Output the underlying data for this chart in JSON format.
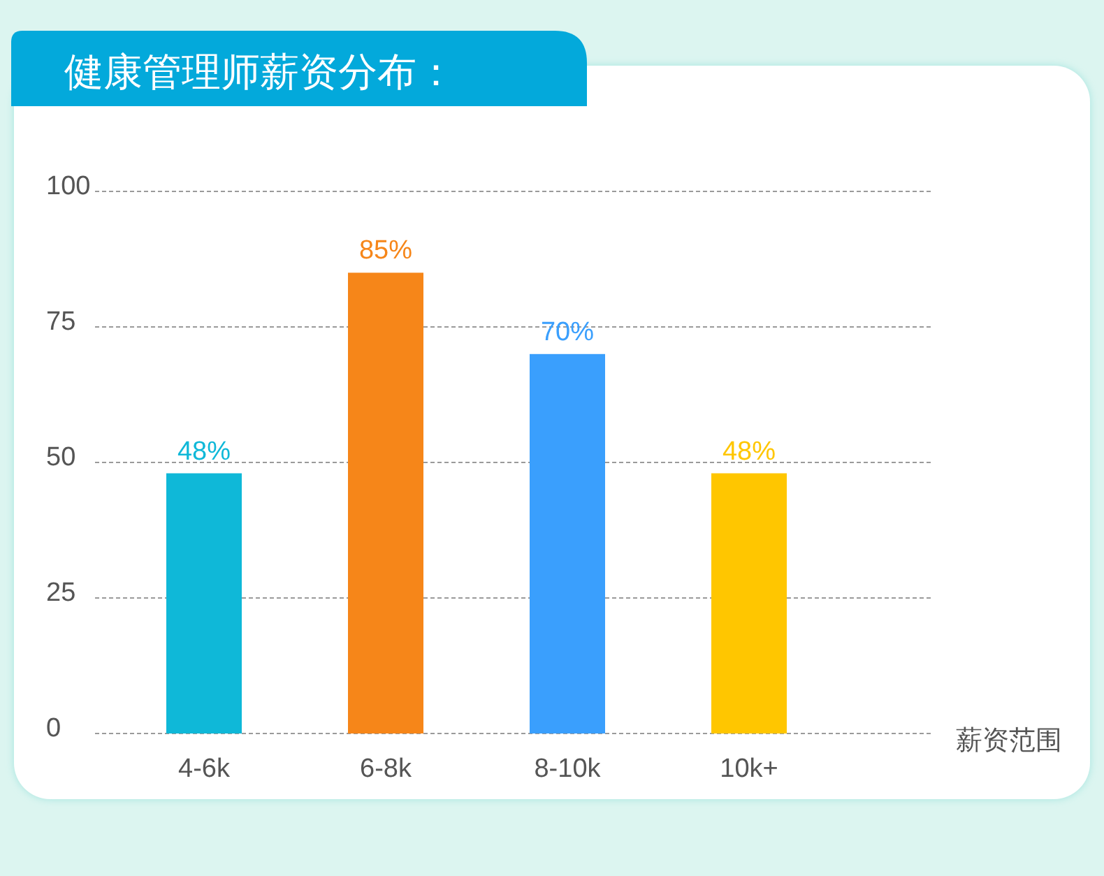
{
  "chart_data": {
    "type": "bar",
    "title": "健康管理师薪资分布：",
    "xlabel": "薪资范围",
    "categories": [
      "4-6k",
      "6-8k",
      "8-10k",
      "10k+"
    ],
    "values": [
      48,
      85,
      70,
      48
    ],
    "colors": [
      "#0fb8d8",
      "#f68619",
      "#3a9ffd",
      "#ffc600"
    ],
    "value_labels": [
      "48%",
      "85%",
      "70%",
      "48%"
    ],
    "ylim": [
      0,
      100
    ],
    "yticks": [
      0,
      25,
      50,
      75,
      100
    ],
    "grid": "y"
  }
}
